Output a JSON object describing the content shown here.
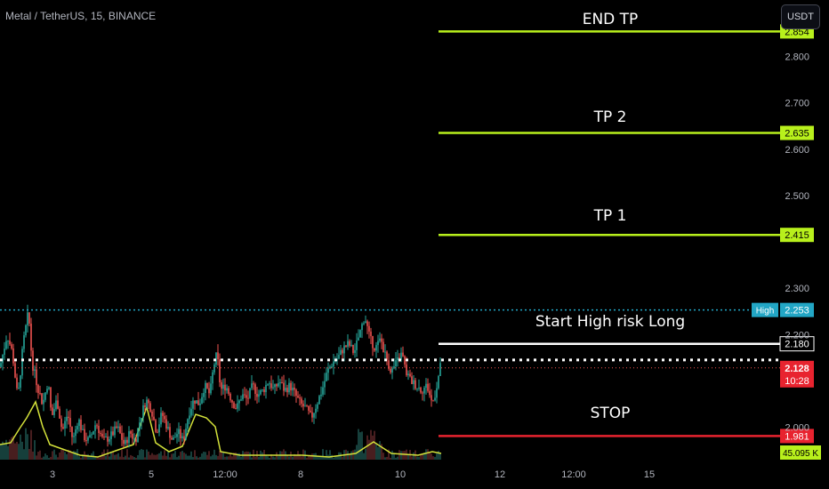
{
  "header": {
    "symbol_title": "Metal / TetherUS, 15, BINANCE",
    "currency_button": "USDT"
  },
  "annotations": {
    "end_tp": "END TP",
    "tp2": "TP 2",
    "tp1": "TP 1",
    "entry": "Start High risk Long",
    "stop": "STOP"
  },
  "colors": {
    "background": "#000000",
    "tp_line": "#b8f01c",
    "entry_line": "#ffffff",
    "stop_line": "#e8232f",
    "high_line": "#22a6c5",
    "candle_up": "#26a69a",
    "candle_down": "#ef5350",
    "volume_ma": "#d4e23a",
    "axis_text": "#b2b5be"
  },
  "chart_data": {
    "type": "candlestick",
    "title": "Metal / TetherUS, 15, BINANCE",
    "ylim": [
      1.93,
      2.895
    ],
    "y_ticks": [
      "2.800",
      "2.700",
      "2.600",
      "2.500",
      "2.300",
      "2.200",
      "2.000"
    ],
    "x_ticks": [
      "3",
      "5",
      "12:00",
      "8",
      "10",
      "12",
      "12:00",
      "15"
    ],
    "price_levels": [
      {
        "name": "END TP",
        "value": 2.854,
        "label": "2.854"
      },
      {
        "name": "TP 2",
        "value": 2.635,
        "label": "2.635"
      },
      {
        "name": "TP 1",
        "value": 2.415,
        "label": "2.415"
      },
      {
        "name": "Start High risk Long",
        "value": 2.18,
        "label": "2.180"
      },
      {
        "name": "STOP",
        "value": 1.981,
        "label": "1.981"
      }
    ],
    "high": {
      "label": "High",
      "value": 2.253,
      "value_label": "2.253"
    },
    "last_price": {
      "value": 2.128,
      "label": "2.128",
      "countdown": "10:28"
    },
    "entry_zone_value": 2.145,
    "volume_label": "45.095 K",
    "close_path": [
      [
        0,
        2.13
      ],
      [
        8,
        2.2
      ],
      [
        14,
        2.16
      ],
      [
        20,
        2.06
      ],
      [
        26,
        2.18
      ],
      [
        32,
        2.25
      ],
      [
        36,
        2.14
      ],
      [
        42,
        2.09
      ],
      [
        48,
        2.05
      ],
      [
        54,
        2.1
      ],
      [
        58,
        2.02
      ],
      [
        64,
        2.06
      ],
      [
        70,
        1.99
      ],
      [
        76,
        2.03
      ],
      [
        82,
        1.97
      ],
      [
        88,
        2.02
      ],
      [
        94,
        1.98
      ],
      [
        100,
        1.97
      ],
      [
        108,
        2.01
      ],
      [
        116,
        1.97
      ],
      [
        124,
        1.98
      ],
      [
        132,
        2.0
      ],
      [
        140,
        1.96
      ],
      [
        146,
        1.99
      ],
      [
        152,
        1.97
      ],
      [
        158,
        2.02
      ],
      [
        164,
        2.06
      ],
      [
        170,
        2.04
      ],
      [
        176,
        1.99
      ],
      [
        182,
        2.03
      ],
      [
        188,
        2.0
      ],
      [
        194,
        1.97
      ],
      [
        200,
        1.99
      ],
      [
        206,
        1.97
      ],
      [
        212,
        2.03
      ],
      [
        218,
        2.06
      ],
      [
        224,
        2.05
      ],
      [
        230,
        2.09
      ],
      [
        236,
        2.07
      ],
      [
        240,
        2.13
      ],
      [
        244,
        2.16
      ],
      [
        248,
        2.08
      ],
      [
        254,
        2.09
      ],
      [
        260,
        2.06
      ],
      [
        266,
        2.04
      ],
      [
        272,
        2.07
      ],
      [
        278,
        2.06
      ],
      [
        284,
        2.09
      ],
      [
        290,
        2.07
      ],
      [
        296,
        2.08
      ],
      [
        302,
        2.1
      ],
      [
        308,
        2.08
      ],
      [
        314,
        2.1
      ],
      [
        320,
        2.08
      ],
      [
        326,
        2.09
      ],
      [
        332,
        2.07
      ],
      [
        338,
        2.05
      ],
      [
        344,
        2.04
      ],
      [
        350,
        2.02
      ],
      [
        356,
        2.05
      ],
      [
        362,
        2.08
      ],
      [
        368,
        2.12
      ],
      [
        374,
        2.14
      ],
      [
        380,
        2.15
      ],
      [
        386,
        2.17
      ],
      [
        392,
        2.18
      ],
      [
        398,
        2.16
      ],
      [
        404,
        2.2
      ],
      [
        410,
        2.24
      ],
      [
        416,
        2.19
      ],
      [
        422,
        2.17
      ],
      [
        428,
        2.19
      ],
      [
        434,
        2.15
      ],
      [
        440,
        2.12
      ],
      [
        446,
        2.14
      ],
      [
        452,
        2.16
      ],
      [
        456,
        2.12
      ],
      [
        462,
        2.1
      ],
      [
        468,
        2.09
      ],
      [
        474,
        2.08
      ],
      [
        480,
        2.09
      ],
      [
        486,
        2.05
      ],
      [
        490,
        2.08
      ],
      [
        496,
        2.14
      ]
    ]
  }
}
